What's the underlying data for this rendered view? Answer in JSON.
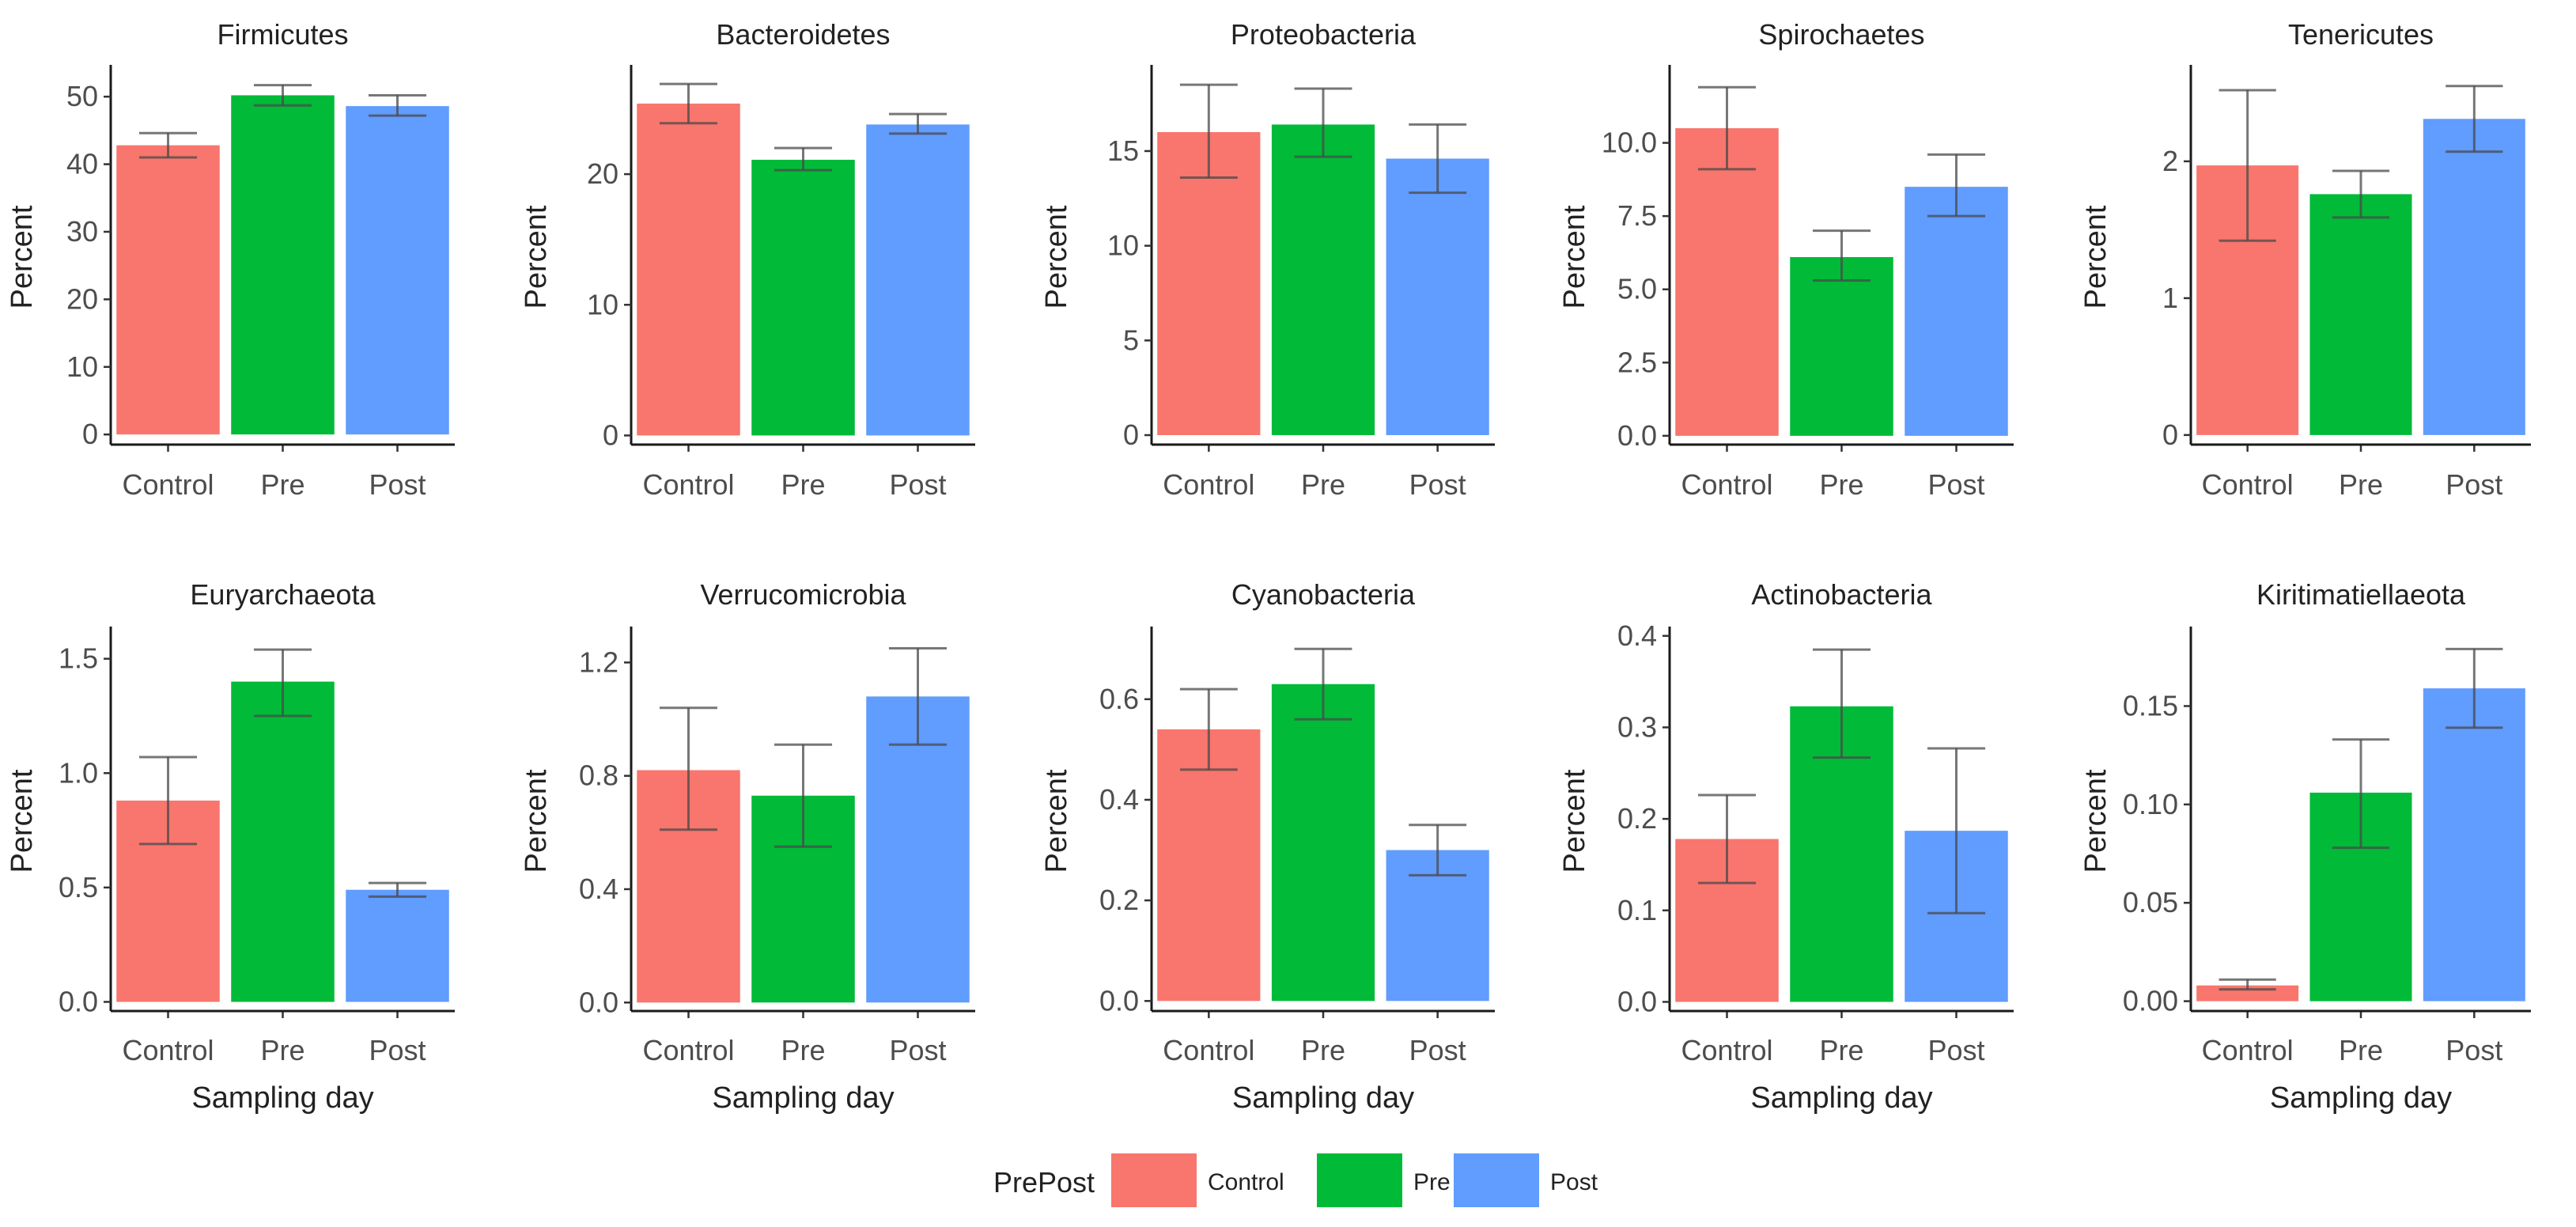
{
  "legend": {
    "title": "PrePost",
    "items": [
      {
        "label": "Control",
        "color": "#F8766D"
      },
      {
        "label": "Pre",
        "color": "#00BA38"
      },
      {
        "label": "Post",
        "color": "#619CFF"
      }
    ]
  },
  "chart_data": [
    {
      "type": "bar",
      "title": "Firmicutes",
      "ylabel": "Percent",
      "xlabel": "",
      "categories": [
        "Control",
        "Pre",
        "Post"
      ],
      "values": [
        42.8,
        50.2,
        48.6
      ],
      "error_low": [
        41.0,
        48.7,
        47.2
      ],
      "error_high": [
        44.6,
        51.7,
        50.2
      ],
      "ylim": [
        -1.5,
        54
      ],
      "yticks": [
        0,
        10,
        20,
        30,
        40,
        50
      ],
      "ytick_labels": [
        "0",
        "10",
        "20",
        "30",
        "40",
        "50"
      ]
    },
    {
      "type": "bar",
      "title": "Bacteroidetes",
      "ylabel": "Percent",
      "xlabel": "",
      "categories": [
        "Control",
        "Pre",
        "Post"
      ],
      "values": [
        25.4,
        21.1,
        23.8
      ],
      "error_low": [
        23.9,
        20.3,
        23.1
      ],
      "error_high": [
        26.9,
        22.0,
        24.6
      ],
      "ylim": [
        -0.7,
        28
      ],
      "yticks": [
        0,
        10,
        20
      ],
      "ytick_labels": [
        "0",
        "10",
        "20"
      ]
    },
    {
      "type": "bar",
      "title": "Proteobacteria",
      "ylabel": "Percent",
      "xlabel": "",
      "categories": [
        "Control",
        "Pre",
        "Post"
      ],
      "values": [
        16.0,
        16.4,
        14.6
      ],
      "error_low": [
        13.6,
        14.7,
        12.8
      ],
      "error_high": [
        18.5,
        18.3,
        16.4
      ],
      "ylim": [
        -0.5,
        19.3
      ],
      "yticks": [
        0,
        5,
        10,
        15
      ],
      "ytick_labels": [
        "0",
        "5",
        "10",
        "15"
      ]
    },
    {
      "type": "bar",
      "title": "Spirochaetes",
      "ylabel": "Percent",
      "xlabel": "",
      "categories": [
        "Control",
        "Pre",
        "Post"
      ],
      "values": [
        10.5,
        6.1,
        8.5
      ],
      "error_low": [
        9.1,
        5.3,
        7.5
      ],
      "error_high": [
        11.9,
        7.0,
        9.6
      ],
      "ylim": [
        -0.3,
        12.5
      ],
      "yticks": [
        0,
        2.5,
        5,
        7.5,
        10
      ],
      "ytick_labels": [
        "0.0",
        "2.5",
        "5.0",
        "7.5",
        "10.0"
      ]
    },
    {
      "type": "bar",
      "title": "Tenericutes",
      "ylabel": "Percent",
      "xlabel": "",
      "categories": [
        "Control",
        "Pre",
        "Post"
      ],
      "values": [
        1.97,
        1.76,
        2.31
      ],
      "error_low": [
        1.42,
        1.59,
        2.07
      ],
      "error_high": [
        2.52,
        1.93,
        2.55
      ],
      "ylim": [
        -0.07,
        2.67
      ],
      "yticks": [
        0,
        1,
        2
      ],
      "ytick_labels": [
        "0",
        "1",
        "2"
      ]
    },
    {
      "type": "bar",
      "title": "Euryarchaeota",
      "ylabel": "Percent",
      "xlabel": "Sampling day",
      "categories": [
        "Control",
        "Pre",
        "Post"
      ],
      "values": [
        0.88,
        1.4,
        0.49
      ],
      "error_low": [
        0.69,
        1.25,
        0.46
      ],
      "error_high": [
        1.07,
        1.54,
        0.52
      ],
      "ylim": [
        -0.04,
        1.62
      ],
      "yticks": [
        0,
        0.5,
        1,
        1.5
      ],
      "ytick_labels": [
        "0.0",
        "0.5",
        "1.0",
        "1.5"
      ]
    },
    {
      "type": "bar",
      "title": "Verrucomicrobia",
      "ylabel": "Percent",
      "xlabel": "Sampling day",
      "categories": [
        "Control",
        "Pre",
        "Post"
      ],
      "values": [
        0.82,
        0.73,
        1.08
      ],
      "error_low": [
        0.61,
        0.55,
        0.91
      ],
      "error_high": [
        1.04,
        0.91,
        1.25
      ],
      "ylim": [
        -0.03,
        1.31
      ],
      "yticks": [
        0,
        0.4,
        0.8,
        1.2
      ],
      "ytick_labels": [
        "0.0",
        "0.4",
        "0.8",
        "1.2"
      ]
    },
    {
      "type": "bar",
      "title": "Cyanobacteria",
      "ylabel": "Percent",
      "xlabel": "Sampling day",
      "categories": [
        "Control",
        "Pre",
        "Post"
      ],
      "values": [
        0.54,
        0.63,
        0.3
      ],
      "error_low": [
        0.46,
        0.56,
        0.25
      ],
      "error_high": [
        0.62,
        0.7,
        0.35
      ],
      "ylim": [
        -0.02,
        0.735
      ],
      "yticks": [
        0,
        0.2,
        0.4,
        0.6
      ],
      "ytick_labels": [
        "0.0",
        "0.2",
        "0.4",
        "0.6"
      ]
    },
    {
      "type": "bar",
      "title": "Actinobacteria",
      "ylabel": "Percent",
      "xlabel": "Sampling day",
      "categories": [
        "Control",
        "Pre",
        "Post"
      ],
      "values": [
        0.178,
        0.323,
        0.187
      ],
      "error_low": [
        0.13,
        0.267,
        0.097
      ],
      "error_high": [
        0.226,
        0.385,
        0.277
      ],
      "ylim": [
        -0.01,
        0.405
      ],
      "yticks": [
        0,
        0.1,
        0.2,
        0.3,
        0.4
      ],
      "ytick_labels": [
        "0.0",
        "0.1",
        "0.2",
        "0.3",
        "0.4"
      ]
    },
    {
      "type": "bar",
      "title": "Kiritimatiellaeota",
      "ylabel": "Percent",
      "xlabel": "Sampling day",
      "categories": [
        "Control",
        "Pre",
        "Post"
      ],
      "values": [
        0.008,
        0.106,
        0.159
      ],
      "error_low": [
        0.006,
        0.078,
        0.139
      ],
      "error_high": [
        0.011,
        0.133,
        0.179
      ],
      "ylim": [
        -0.005,
        0.188
      ],
      "yticks": [
        0,
        0.05,
        0.1,
        0.15
      ],
      "ytick_labels": [
        "0.00",
        "0.05",
        "0.10",
        "0.15"
      ]
    }
  ]
}
